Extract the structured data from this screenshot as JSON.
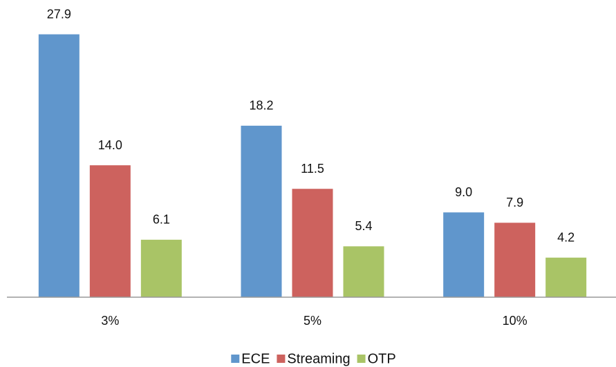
{
  "chart_data": {
    "type": "bar",
    "categories": [
      "3%",
      "5%",
      "10%"
    ],
    "series": [
      {
        "name": "ECE",
        "color": "#6096cc",
        "values": [
          27.9,
          18.2,
          9
        ],
        "value_labels": [
          "27.9",
          "18.2",
          "9.0"
        ]
      },
      {
        "name": "Streaming",
        "color": "#cd625e",
        "values": [
          14,
          11.5,
          7.9
        ],
        "value_labels": [
          "14.0",
          "11.5",
          "7.9"
        ]
      },
      {
        "name": "OTP",
        "color": "#a9c466",
        "values": [
          6.1,
          5.4,
          4.2
        ],
        "value_labels": [
          "6.1",
          "5.4",
          "4.2"
        ]
      }
    ],
    "ylim": [
      0,
      30
    ],
    "legend": "bottom"
  }
}
